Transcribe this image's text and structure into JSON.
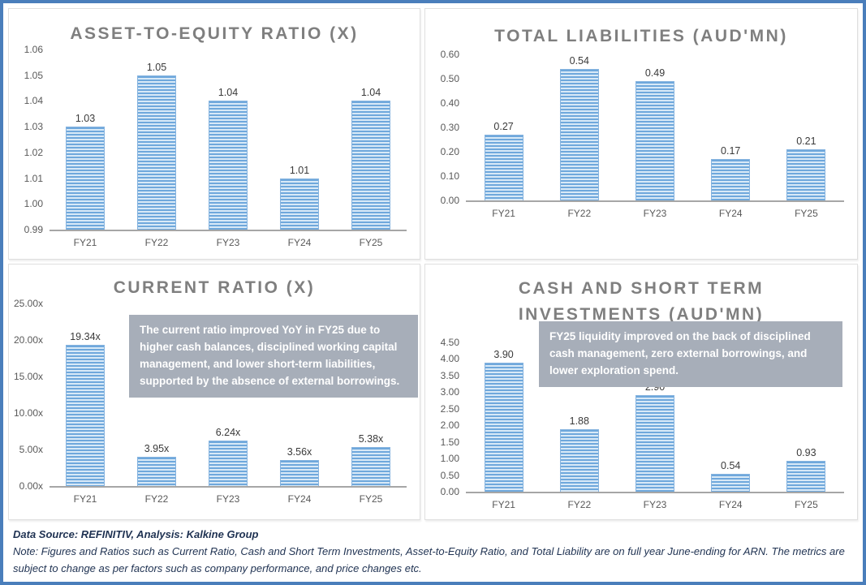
{
  "colors": {
    "frame_border": "#4A7EBB",
    "bar_stripe_dark": "#6FA8DC",
    "bar_stripe_light": "#D8E9F7",
    "bar_border": "#85B3DF",
    "title_text": "#7F7F7F",
    "tick_text": "#595959",
    "value_label_text": "#3A3A3A",
    "axis_line": "#A6A6A6",
    "annotation_bg": "#A7AEB9",
    "annotation_text": "#FFFFFF",
    "footer_text": "#1F3252"
  },
  "chart_data": [
    {
      "id": "asset_to_equity_ratio",
      "type": "bar",
      "title": "ASSET-TO-EQUITY RATIO (X)",
      "categories": [
        "FY21",
        "FY22",
        "FY23",
        "FY24",
        "FY25"
      ],
      "values": [
        1.03,
        1.05,
        1.04,
        1.01,
        1.04
      ],
      "value_labels": [
        "1.03",
        "1.05",
        "1.04",
        "1.01",
        "1.04"
      ],
      "yticks": [
        "1.06",
        "1.05",
        "1.04",
        "1.03",
        "1.02",
        "1.01",
        "1.00",
        "0.99"
      ],
      "ylim": [
        0.99,
        1.06
      ],
      "grid": false,
      "legend": false,
      "annotation": null
    },
    {
      "id": "total_liabilities",
      "type": "bar",
      "title": "TOTAL LIABILITIES (AUD'MN)",
      "categories": [
        "FY21",
        "FY22",
        "FY23",
        "FY24",
        "FY25"
      ],
      "values": [
        0.27,
        0.54,
        0.49,
        0.17,
        0.21
      ],
      "value_labels": [
        "0.27",
        "0.54",
        "0.49",
        "0.17",
        "0.21"
      ],
      "yticks": [
        "0.60",
        "0.50",
        "0.40",
        "0.30",
        "0.20",
        "0.10",
        "0.00"
      ],
      "ylim": [
        0,
        0.6
      ],
      "grid": false,
      "legend": false,
      "annotation": null
    },
    {
      "id": "current_ratio",
      "type": "bar",
      "title": "CURRENT RATIO (X)",
      "categories": [
        "FY21",
        "FY22",
        "FY23",
        "FY24",
        "FY25"
      ],
      "values": [
        19.34,
        3.95,
        6.24,
        3.56,
        5.38
      ],
      "value_labels": [
        "19.34x",
        "3.95x",
        "6.24x",
        "3.56x",
        "5.38x"
      ],
      "yticks": [
        "25.00x",
        "20.00x",
        "15.00x",
        "10.00x",
        "5.00x",
        "0.00x"
      ],
      "ylim": [
        0,
        25
      ],
      "grid": false,
      "legend": false,
      "annotation": "The current ratio improved YoY in FY25 due to higher cash balances, disciplined working capital management, and lower short-term liabilities, supported by the absence of external borrowings."
    },
    {
      "id": "cash_and_short_term_investments",
      "type": "bar",
      "title": "CASH AND SHORT TERM INVESTMENTS (AUD'MN)",
      "categories": [
        "FY21",
        "FY22",
        "FY23",
        "FY24",
        "FY25"
      ],
      "values": [
        3.9,
        1.88,
        2.9,
        0.54,
        0.93
      ],
      "value_labels": [
        "3.90",
        "1.88",
        "2.90",
        "0.54",
        "0.93"
      ],
      "yticks": [
        "4.50",
        "4.00",
        "3.50",
        "3.00",
        "2.50",
        "2.00",
        "1.50",
        "1.00",
        "0.50",
        "0.00"
      ],
      "ylim": [
        0,
        4.5
      ],
      "grid": false,
      "legend": false,
      "annotation": "FY25 liquidity improved on the back of disciplined cash management, zero external borrowings, and lower exploration spend."
    }
  ],
  "footer": {
    "source_line": "Data Source: REFINITIV, Analysis: Kalkine Group",
    "note_line": "Note: Figures and Ratios such as Current Ratio, Cash and Short Term Investments, Asset-to-Equity Ratio, and Total Liability are on full year June-ending for ARN. The metrics are subject to change as per factors such as company performance, and price changes etc."
  }
}
